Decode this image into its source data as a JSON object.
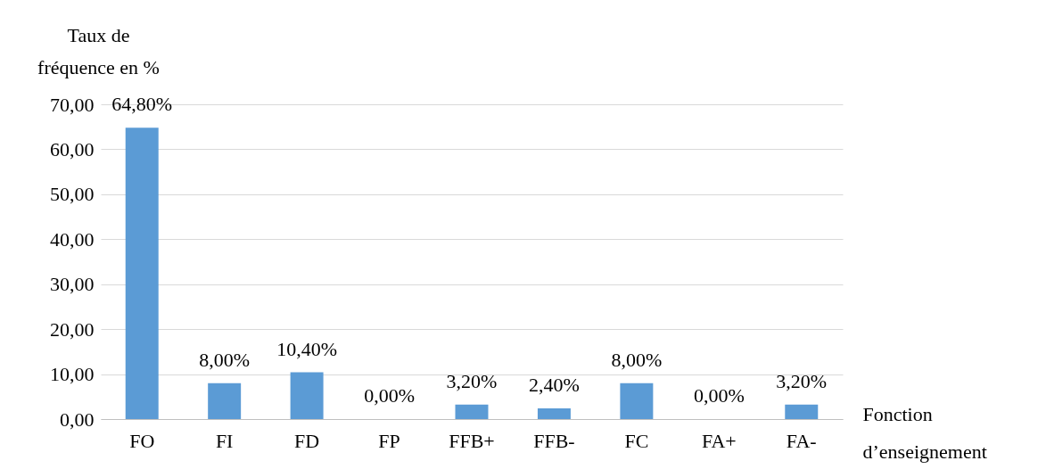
{
  "chart_data": {
    "type": "bar",
    "xlabel": "Fonction d’enseignement",
    "ylabel": "Taux de fréquence en %",
    "categories": [
      "FO",
      "FI",
      "FD",
      "FP",
      "FFB+",
      "FFB-",
      "FC",
      "FA+",
      "FA-"
    ],
    "values": [
      64.8,
      8.0,
      10.4,
      0.0,
      3.2,
      2.4,
      8.0,
      0.0,
      3.2
    ],
    "value_labels": [
      "64,80%",
      "8,00%",
      "10,40%",
      "0,00%",
      "3,20%",
      "2,40%",
      "8,00%",
      "0,00%",
      "3,20%"
    ],
    "color": "#5b9bd5",
    "ylim": [
      0,
      70
    ],
    "yticks": [
      {
        "value": 0,
        "label": "0,00"
      },
      {
        "value": 10,
        "label": "10,00"
      },
      {
        "value": 20,
        "label": "20,00"
      },
      {
        "value": 30,
        "label": "30,00"
      },
      {
        "value": 40,
        "label": "40,00"
      },
      {
        "value": 50,
        "label": "50,00"
      },
      {
        "value": 60,
        "label": "60,00"
      },
      {
        "value": 70,
        "label": "70,00"
      }
    ],
    "grid": "y"
  }
}
